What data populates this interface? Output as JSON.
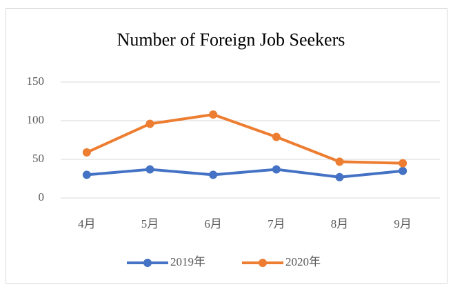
{
  "chart_data": {
    "type": "line",
    "title": "Number of Foreign Job Seekers",
    "categories": [
      "4月",
      "5月",
      "6月",
      "7月",
      "8月",
      "9月"
    ],
    "series": [
      {
        "name": "2019年",
        "color": "#4472c4",
        "values": [
          30,
          37,
          30,
          37,
          27,
          35
        ]
      },
      {
        "name": "2020年",
        "color": "#ed7d31",
        "values": [
          59,
          96,
          108,
          79,
          47,
          45
        ]
      }
    ],
    "ylim": [
      0,
      150
    ],
    "yticks": [
      0,
      50,
      100,
      150
    ],
    "grid": true,
    "legend": "bottom"
  }
}
